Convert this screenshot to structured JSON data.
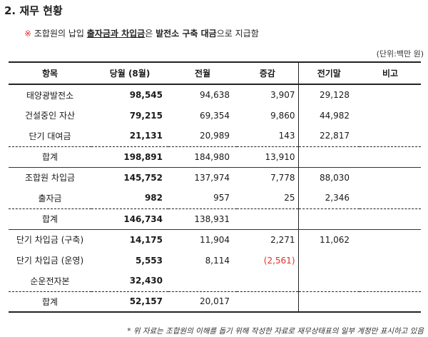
{
  "title": "2.  재무 현황",
  "note": {
    "mark": "※",
    "p1": " 조합원의 납입 ",
    "u1": "출자금과 차입금",
    "p2": "은 ",
    "b1": "발전소 구축 대금",
    "p3": "으로 지급함"
  },
  "unit": "(단위:백만 원)",
  "headers": [
    "항목",
    "당월 (8월)",
    "전월",
    "증감",
    "전기말",
    "비고"
  ],
  "rows": [
    {
      "label": "태양광발전소",
      "cur": "98,545",
      "prev": "94,638",
      "diff": "3,907",
      "end": "29,128",
      "memo": ""
    },
    {
      "label": "건설중인 자산",
      "cur": "79,215",
      "prev": "69,354",
      "diff": "9,860",
      "end": "44,982",
      "memo": ""
    },
    {
      "label": "단기 대여금",
      "cur": "21,131",
      "prev": "20,989",
      "diff": "143",
      "end": "22,817",
      "memo": ""
    },
    {
      "label": "합계",
      "cur": "198,891",
      "prev": "184,980",
      "diff": "13,910",
      "end": "",
      "memo": ""
    },
    {
      "label": "조합원 차입금",
      "cur": "145,752",
      "prev": "137,974",
      "diff": "7,778",
      "end": "88,030",
      "memo": ""
    },
    {
      "label": "출자금",
      "cur": "982",
      "prev": "957",
      "diff": "25",
      "end": "2,346",
      "memo": ""
    },
    {
      "label": "합계",
      "cur": "146,734",
      "prev": "138,931",
      "diff": "",
      "end": "",
      "memo": ""
    },
    {
      "label": "단기 차입금 (구축)",
      "cur": "14,175",
      "prev": "11,904",
      "diff": "2,271",
      "end": "11,062",
      "memo": ""
    },
    {
      "label": "단기 차입금 (운영)",
      "cur": "5,553",
      "prev": "8,114",
      "diff": "(2,561)",
      "end": "",
      "memo": ""
    },
    {
      "label": "순운전자본",
      "cur": "32,430",
      "prev": "",
      "diff": "",
      "end": "",
      "memo": ""
    },
    {
      "label": "합계",
      "cur": "52,157",
      "prev": "20,017",
      "diff": "",
      "end": "",
      "memo": ""
    }
  ],
  "footnote": "* 위 자료는 조합원의 이해를 돕기 위해 작성한 자료로 재무상태표의 일부 계정만 표시하고 있음",
  "colors": {
    "negative": "#e0302a",
    "mark": "#e0302a"
  }
}
